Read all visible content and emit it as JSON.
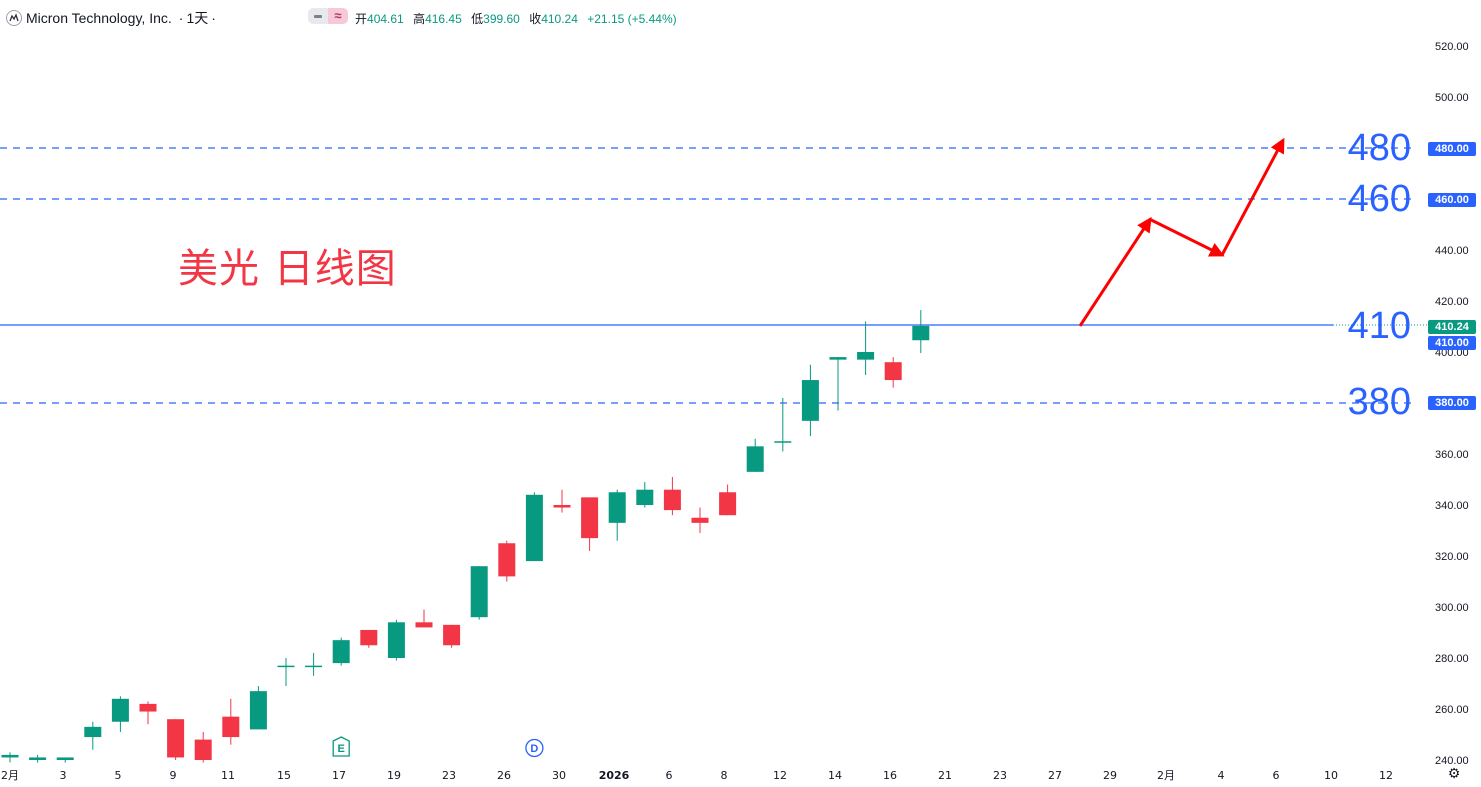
{
  "header": {
    "title": "Micron Technology, Inc.",
    "interval": "1天",
    "open_label": "开",
    "open": "404.61",
    "high_label": "高",
    "high": "416.45",
    "low_label": "低",
    "low": "399.60",
    "close_label": "收",
    "close": "410.24",
    "change": "+21.15 (+5.44%)"
  },
  "annotation_text": "美光 日线图",
  "levels": [
    {
      "label": "480",
      "tag": "480.00",
      "value": 480
    },
    {
      "label": "460",
      "tag": "460.00",
      "value": 460
    },
    {
      "label": "410",
      "tag": "410.00",
      "value": 410
    },
    {
      "label": "380",
      "tag": "380.00",
      "value": 380
    }
  ],
  "last_price_tag": "410.24",
  "colors": {
    "up": "#089981",
    "down": "#f23645",
    "level_line": "#2962ff",
    "price_line": "#2962ff",
    "arrow": "#ff0000",
    "annotation": "#f23645"
  },
  "chart_data": {
    "type": "candlestick",
    "title": "",
    "y_range": [
      240,
      525
    ],
    "y_ticks": [
      240,
      260,
      280,
      300,
      320,
      340,
      360,
      380,
      400,
      420,
      440,
      460,
      480,
      500,
      520
    ],
    "y_tick_labels": [
      "240.00",
      "260.00",
      "280.00",
      "300.00",
      "320.00",
      "340.00",
      "360.00",
      "380.00",
      "400.00",
      "420.00",
      "440.00",
      "460.00",
      "480.00",
      "500.00",
      "520.00"
    ],
    "x_tick_labels": [
      "2月",
      "3",
      "5",
      "9",
      "11",
      "15",
      "17",
      "19",
      "23",
      "26",
      "30",
      "2026",
      "6",
      "8",
      "12",
      "14",
      "16",
      "21",
      "23",
      "27",
      "29",
      "2月",
      "4",
      "6",
      "10",
      "12"
    ],
    "candles": [
      {
        "o": 241,
        "h": 243,
        "l": 239,
        "c": 242
      },
      {
        "o": 240,
        "h": 242,
        "l": 239,
        "c": 241
      },
      {
        "o": 240,
        "h": 241,
        "l": 239,
        "c": 241
      },
      {
        "o": 249,
        "h": 255,
        "l": 244,
        "c": 253
      },
      {
        "o": 255,
        "h": 265,
        "l": 251,
        "c": 264
      },
      {
        "o": 262,
        "h": 263,
        "l": 254,
        "c": 259
      },
      {
        "o": 256,
        "h": 256,
        "l": 240,
        "c": 241
      },
      {
        "o": 248,
        "h": 251,
        "l": 239,
        "c": 240
      },
      {
        "o": 257,
        "h": 264,
        "l": 246,
        "c": 249
      },
      {
        "o": 252,
        "h": 269,
        "l": 252,
        "c": 267
      },
      {
        "o": 277,
        "h": 280,
        "l": 269,
        "c": 277
      },
      {
        "o": 277,
        "h": 282,
        "l": 273,
        "c": 277
      },
      {
        "o": 278,
        "h": 288,
        "l": 277,
        "c": 287
      },
      {
        "o": 291,
        "h": 291,
        "l": 284,
        "c": 285
      },
      {
        "o": 280,
        "h": 295,
        "l": 279,
        "c": 294
      },
      {
        "o": 294,
        "h": 299,
        "l": 292,
        "c": 292
      },
      {
        "o": 293,
        "h": 293,
        "l": 284,
        "c": 285
      },
      {
        "o": 296,
        "h": 316,
        "l": 295,
        "c": 316
      },
      {
        "o": 325,
        "h": 326,
        "l": 310,
        "c": 312
      },
      {
        "o": 318,
        "h": 345,
        "l": 318,
        "c": 344
      },
      {
        "o": 340,
        "h": 346,
        "l": 337,
        "c": 339
      },
      {
        "o": 343,
        "h": 343,
        "l": 322,
        "c": 327
      },
      {
        "o": 333,
        "h": 346,
        "l": 326,
        "c": 345
      },
      {
        "o": 340,
        "h": 349,
        "l": 339,
        "c": 346
      },
      {
        "o": 346,
        "h": 351,
        "l": 336,
        "c": 338
      },
      {
        "o": 335,
        "h": 339,
        "l": 329,
        "c": 333
      },
      {
        "o": 345,
        "h": 348,
        "l": 336,
        "c": 336
      },
      {
        "o": 353,
        "h": 366,
        "l": 353,
        "c": 363
      },
      {
        "o": 365,
        "h": 382,
        "l": 361,
        "c": 365
      },
      {
        "o": 373,
        "h": 395,
        "l": 367,
        "c": 389
      },
      {
        "o": 397,
        "h": 398,
        "l": 377,
        "c": 398
      },
      {
        "o": 397,
        "h": 412,
        "l": 391,
        "c": 400
      },
      {
        "o": 396,
        "h": 398,
        "l": 386,
        "c": 389
      },
      {
        "o": 404.61,
        "h": 416.45,
        "l": 399.6,
        "c": 410.24
      }
    ],
    "markers": [
      {
        "label": "E",
        "color": "#089981"
      },
      {
        "label": "D",
        "color": "#2962ff"
      }
    ],
    "horizontal_levels": [
      480,
      460,
      410,
      380
    ],
    "last_price": 410.24,
    "projection_path": [
      410.24,
      452,
      438,
      483
    ]
  }
}
